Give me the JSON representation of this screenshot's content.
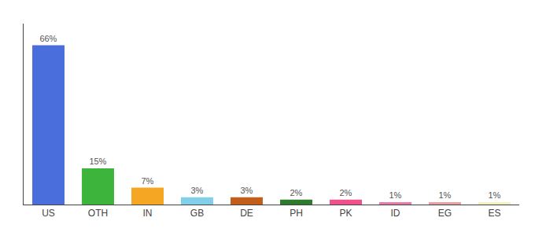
{
  "chart_data": {
    "type": "bar",
    "categories": [
      "US",
      "OTH",
      "IN",
      "GB",
      "DE",
      "PH",
      "PK",
      "ID",
      "EG",
      "ES"
    ],
    "values": [
      66,
      15,
      7,
      3,
      3,
      2,
      2,
      1,
      1,
      1
    ],
    "value_labels": [
      "66%",
      "15%",
      "7%",
      "3%",
      "3%",
      "2%",
      "2%",
      "1%",
      "1%",
      "1%"
    ],
    "colors": [
      "#4a6edb",
      "#3db53d",
      "#f5a623",
      "#82cfea",
      "#c25e1a",
      "#2d7a2d",
      "#f0508c",
      "#e87aaa",
      "#e8a0a0",
      "#f0f0c0"
    ],
    "ylim": [
      0,
      75
    ],
    "data_labels": true,
    "tick_labels": "x",
    "grid": false
  }
}
